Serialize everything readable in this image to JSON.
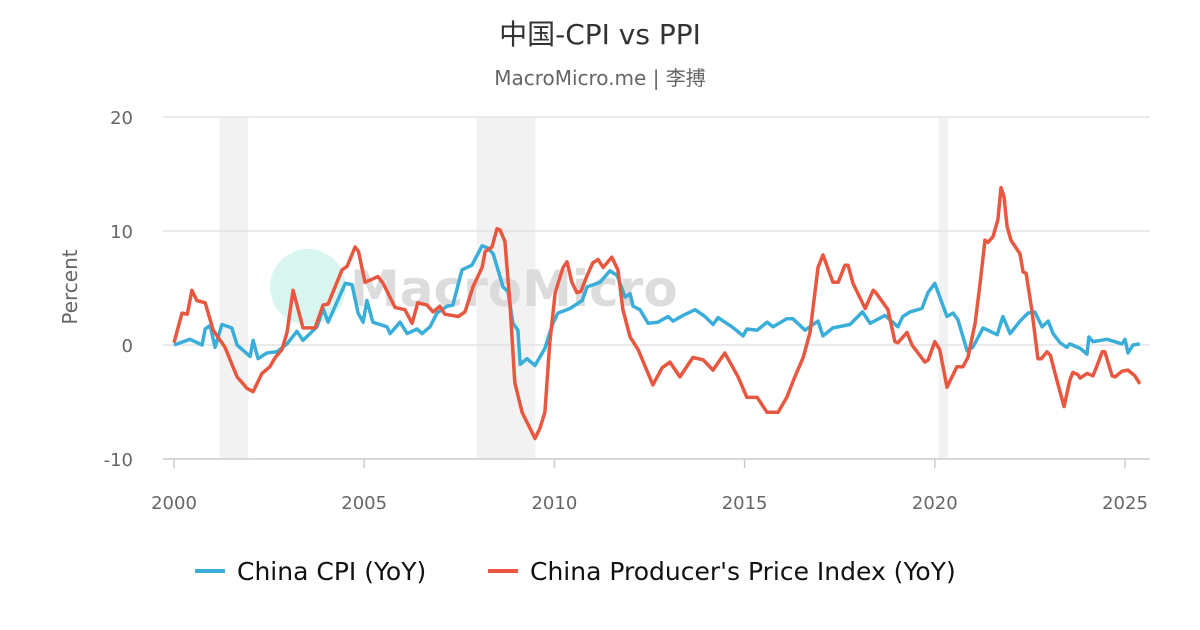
{
  "chart_data": {
    "type": "line",
    "title": "中国-CPI vs PPI",
    "subtitle": "MacroMicro.me | 李搏",
    "ylabel": "Percent",
    "xlabel": "",
    "xlim": [
      2000,
      2025.7
    ],
    "ylim": [
      -10,
      20
    ],
    "x_ticks": [
      "2000",
      "2005",
      "2010",
      "2015",
      "2020",
      "2025"
    ],
    "y_ticks": [
      "20",
      "10",
      "0",
      "-10"
    ],
    "grid": "horizontal",
    "legend": "bottom",
    "watermark": "MacroMicro",
    "shaded_periods": [
      [
        2001.2,
        2001.95
      ],
      [
        2007.95,
        2009.5
      ],
      [
        2020.1,
        2020.35
      ]
    ],
    "series": [
      {
        "name": "China CPI (YoY)",
        "color": "#3aaed8",
        "points": [
          [
            2000.0,
            0.0
          ],
          [
            2000.42,
            0.5
          ],
          [
            2000.74,
            0.0
          ],
          [
            2000.82,
            1.4
          ],
          [
            2000.95,
            1.7
          ],
          [
            2001.08,
            -0.2
          ],
          [
            2001.26,
            1.8
          ],
          [
            2001.52,
            1.5
          ],
          [
            2001.66,
            0.0
          ],
          [
            2002.0,
            -1.0
          ],
          [
            2002.08,
            0.4
          ],
          [
            2002.21,
            -1.2
          ],
          [
            2002.44,
            -0.7
          ],
          [
            2002.71,
            -0.6
          ],
          [
            2002.97,
            0.1
          ],
          [
            2003.23,
            1.2
          ],
          [
            2003.39,
            0.4
          ],
          [
            2003.76,
            1.6
          ],
          [
            2003.92,
            3.2
          ],
          [
            2004.05,
            2.0
          ],
          [
            2004.5,
            5.4
          ],
          [
            2004.68,
            5.3
          ],
          [
            2004.84,
            2.8
          ],
          [
            2004.97,
            2.0
          ],
          [
            2005.07,
            3.9
          ],
          [
            2005.23,
            2.0
          ],
          [
            2005.6,
            1.6
          ],
          [
            2005.68,
            1.0
          ],
          [
            2005.94,
            2.0
          ],
          [
            2006.13,
            1.0
          ],
          [
            2006.39,
            1.4
          ],
          [
            2006.52,
            1.0
          ],
          [
            2006.73,
            1.6
          ],
          [
            2006.91,
            2.8
          ],
          [
            2007.18,
            3.4
          ],
          [
            2007.33,
            3.5
          ],
          [
            2007.57,
            6.6
          ],
          [
            2007.83,
            7.0
          ],
          [
            2008.1,
            8.7
          ],
          [
            2008.25,
            8.5
          ],
          [
            2008.39,
            8.0
          ],
          [
            2008.57,
            6.0
          ],
          [
            2008.65,
            5.1
          ],
          [
            2008.78,
            4.7
          ],
          [
            2008.91,
            1.9
          ],
          [
            2009.04,
            1.3
          ],
          [
            2009.1,
            -1.7
          ],
          [
            2009.28,
            -1.2
          ],
          [
            2009.49,
            -1.8
          ],
          [
            2009.75,
            -0.3
          ],
          [
            2009.96,
            1.9
          ],
          [
            2010.09,
            2.8
          ],
          [
            2010.41,
            3.2
          ],
          [
            2010.73,
            3.9
          ],
          [
            2010.86,
            5.1
          ],
          [
            2011.2,
            5.5
          ],
          [
            2011.46,
            6.5
          ],
          [
            2011.65,
            6.1
          ],
          [
            2011.86,
            4.2
          ],
          [
            2011.99,
            4.5
          ],
          [
            2012.07,
            3.4
          ],
          [
            2012.25,
            3.1
          ],
          [
            2012.46,
            1.9
          ],
          [
            2012.72,
            2.0
          ],
          [
            2012.99,
            2.5
          ],
          [
            2013.12,
            2.1
          ],
          [
            2013.38,
            2.6
          ],
          [
            2013.7,
            3.1
          ],
          [
            2013.96,
            2.5
          ],
          [
            2014.17,
            1.8
          ],
          [
            2014.3,
            2.4
          ],
          [
            2014.67,
            1.6
          ],
          [
            2014.96,
            0.8
          ],
          [
            2015.06,
            1.4
          ],
          [
            2015.33,
            1.3
          ],
          [
            2015.59,
            2.0
          ],
          [
            2015.75,
            1.6
          ],
          [
            2016.11,
            2.3
          ],
          [
            2016.27,
            2.3
          ],
          [
            2016.59,
            1.3
          ],
          [
            2016.93,
            2.1
          ],
          [
            2017.06,
            0.8
          ],
          [
            2017.32,
            1.5
          ],
          [
            2017.77,
            1.8
          ],
          [
            2018.1,
            2.9
          ],
          [
            2018.3,
            1.9
          ],
          [
            2018.69,
            2.6
          ],
          [
            2019.03,
            1.6
          ],
          [
            2019.16,
            2.5
          ],
          [
            2019.35,
            2.9
          ],
          [
            2019.66,
            3.2
          ],
          [
            2019.82,
            4.6
          ],
          [
            2020.0,
            5.4
          ],
          [
            2020.32,
            2.5
          ],
          [
            2020.48,
            2.8
          ],
          [
            2020.61,
            2.2
          ],
          [
            2020.85,
            -0.5
          ],
          [
            2021.0,
            -0.2
          ],
          [
            2021.27,
            1.5
          ],
          [
            2021.64,
            0.9
          ],
          [
            2021.79,
            2.5
          ],
          [
            2021.98,
            1.0
          ],
          [
            2022.24,
            2.1
          ],
          [
            2022.45,
            2.8
          ],
          [
            2022.63,
            2.9
          ],
          [
            2022.82,
            1.6
          ],
          [
            2022.98,
            2.1
          ],
          [
            2023.11,
            1.0
          ],
          [
            2023.29,
            0.2
          ],
          [
            2023.47,
            -0.2
          ],
          [
            2023.55,
            0.1
          ],
          [
            2023.82,
            -0.3
          ],
          [
            2024.0,
            -0.8
          ],
          [
            2024.05,
            0.7
          ],
          [
            2024.16,
            0.3
          ],
          [
            2024.53,
            0.5
          ],
          [
            2024.92,
            0.1
          ],
          [
            2025.0,
            0.5
          ],
          [
            2025.08,
            -0.7
          ],
          [
            2025.21,
            0.0
          ],
          [
            2025.39,
            0.1
          ]
        ]
      },
      {
        "name": "China Producer's Price Index (YoY)",
        "color": "#e8573f",
        "points": [
          [
            2000.0,
            0.2
          ],
          [
            2000.21,
            2.8
          ],
          [
            2000.35,
            2.7
          ],
          [
            2000.47,
            4.8
          ],
          [
            2000.6,
            3.9
          ],
          [
            2000.82,
            3.7
          ],
          [
            2001.03,
            1.3
          ],
          [
            2001.34,
            -0.2
          ],
          [
            2001.66,
            -2.8
          ],
          [
            2001.92,
            -3.8
          ],
          [
            2002.08,
            -4.1
          ],
          [
            2002.31,
            -2.5
          ],
          [
            2002.52,
            -1.9
          ],
          [
            2002.66,
            -1.1
          ],
          [
            2002.84,
            -0.4
          ],
          [
            2002.97,
            1.1
          ],
          [
            2003.13,
            4.8
          ],
          [
            2003.39,
            1.5
          ],
          [
            2003.71,
            1.5
          ],
          [
            2003.92,
            3.5
          ],
          [
            2004.05,
            3.6
          ],
          [
            2004.42,
            6.6
          ],
          [
            2004.55,
            6.9
          ],
          [
            2004.76,
            8.6
          ],
          [
            2004.85,
            8.2
          ],
          [
            2005.02,
            5.5
          ],
          [
            2005.36,
            6.0
          ],
          [
            2005.5,
            5.4
          ],
          [
            2005.81,
            3.3
          ],
          [
            2006.07,
            3.1
          ],
          [
            2006.26,
            1.9
          ],
          [
            2006.41,
            3.7
          ],
          [
            2006.65,
            3.5
          ],
          [
            2006.81,
            2.9
          ],
          [
            2006.99,
            3.4
          ],
          [
            2007.12,
            2.7
          ],
          [
            2007.47,
            2.5
          ],
          [
            2007.65,
            2.9
          ],
          [
            2007.86,
            5.1
          ],
          [
            2008.1,
            6.8
          ],
          [
            2008.18,
            8.2
          ],
          [
            2008.36,
            8.6
          ],
          [
            2008.49,
            10.2
          ],
          [
            2008.57,
            10.1
          ],
          [
            2008.7,
            9.1
          ],
          [
            2008.83,
            3.7
          ],
          [
            2008.96,
            -3.3
          ],
          [
            2009.15,
            -5.9
          ],
          [
            2009.49,
            -8.2
          ],
          [
            2009.62,
            -7.3
          ],
          [
            2009.75,
            -5.9
          ],
          [
            2009.88,
            0.2
          ],
          [
            2010.02,
            4.6
          ],
          [
            2010.23,
            6.8
          ],
          [
            2010.33,
            7.3
          ],
          [
            2010.46,
            5.5
          ],
          [
            2010.59,
            4.6
          ],
          [
            2010.7,
            4.7
          ],
          [
            2010.86,
            6.1
          ],
          [
            2011.01,
            7.2
          ],
          [
            2011.15,
            7.5
          ],
          [
            2011.28,
            6.8
          ],
          [
            2011.51,
            7.7
          ],
          [
            2011.67,
            6.6
          ],
          [
            2011.8,
            3.1
          ],
          [
            2011.99,
            0.7
          ],
          [
            2012.2,
            -0.4
          ],
          [
            2012.59,
            -3.5
          ],
          [
            2012.83,
            -2.0
          ],
          [
            2013.04,
            -1.5
          ],
          [
            2013.3,
            -2.8
          ],
          [
            2013.64,
            -1.1
          ],
          [
            2013.91,
            -1.3
          ],
          [
            2014.17,
            -2.2
          ],
          [
            2014.48,
            -0.7
          ],
          [
            2014.83,
            -2.8
          ],
          [
            2015.06,
            -4.6
          ],
          [
            2015.33,
            -4.6
          ],
          [
            2015.59,
            -5.9
          ],
          [
            2015.88,
            -5.9
          ],
          [
            2016.11,
            -4.6
          ],
          [
            2016.32,
            -2.8
          ],
          [
            2016.54,
            -1.1
          ],
          [
            2016.72,
            1.1
          ],
          [
            2016.93,
            6.8
          ],
          [
            2017.06,
            7.9
          ],
          [
            2017.32,
            5.5
          ],
          [
            2017.46,
            5.5
          ],
          [
            2017.64,
            7.0
          ],
          [
            2017.72,
            7.0
          ],
          [
            2017.85,
            5.4
          ],
          [
            2018.17,
            3.2
          ],
          [
            2018.38,
            4.8
          ],
          [
            2018.45,
            4.6
          ],
          [
            2018.64,
            3.7
          ],
          [
            2018.77,
            3.1
          ],
          [
            2018.95,
            0.3
          ],
          [
            2019.03,
            0.2
          ],
          [
            2019.27,
            1.1
          ],
          [
            2019.4,
            0.0
          ],
          [
            2019.74,
            -1.5
          ],
          [
            2019.83,
            -1.3
          ],
          [
            2020.0,
            0.3
          ],
          [
            2020.13,
            -0.4
          ],
          [
            2020.32,
            -3.7
          ],
          [
            2020.58,
            -1.9
          ],
          [
            2020.74,
            -1.9
          ],
          [
            2020.87,
            -1.1
          ],
          [
            2021.06,
            1.9
          ],
          [
            2021.19,
            5.4
          ],
          [
            2021.32,
            9.2
          ],
          [
            2021.4,
            9.0
          ],
          [
            2021.53,
            9.5
          ],
          [
            2021.66,
            11.0
          ],
          [
            2021.74,
            13.8
          ],
          [
            2021.82,
            13.0
          ],
          [
            2021.9,
            10.4
          ],
          [
            2022.0,
            9.2
          ],
          [
            2022.24,
            8.0
          ],
          [
            2022.32,
            6.4
          ],
          [
            2022.4,
            6.3
          ],
          [
            2022.55,
            3.1
          ],
          [
            2022.71,
            -1.2
          ],
          [
            2022.8,
            -1.2
          ],
          [
            2022.95,
            -0.6
          ],
          [
            2023.04,
            -0.9
          ],
          [
            2023.21,
            -3.1
          ],
          [
            2023.4,
            -5.4
          ],
          [
            2023.55,
            -3.1
          ],
          [
            2023.63,
            -2.4
          ],
          [
            2023.76,
            -2.6
          ],
          [
            2023.82,
            -2.9
          ],
          [
            2024.0,
            -2.5
          ],
          [
            2024.16,
            -2.7
          ],
          [
            2024.29,
            -1.6
          ],
          [
            2024.4,
            -0.6
          ],
          [
            2024.47,
            -0.6
          ],
          [
            2024.66,
            -2.7
          ],
          [
            2024.74,
            -2.8
          ],
          [
            2024.92,
            -2.3
          ],
          [
            2025.08,
            -2.2
          ],
          [
            2025.26,
            -2.7
          ],
          [
            2025.39,
            -3.4
          ]
        ]
      }
    ]
  }
}
